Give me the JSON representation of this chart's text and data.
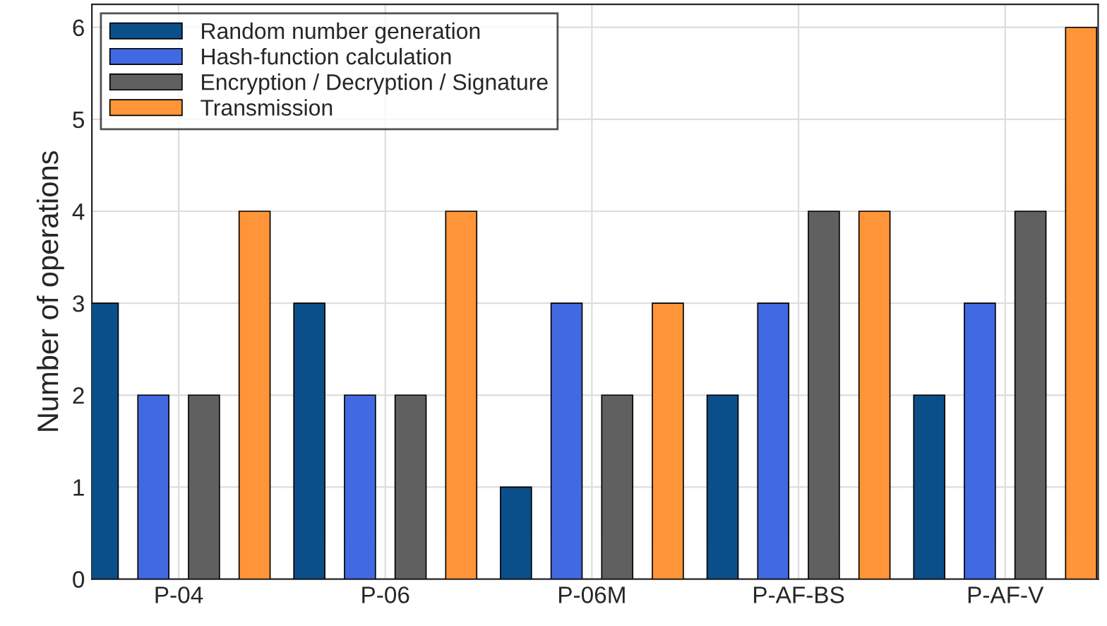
{
  "chart_data": {
    "type": "bar",
    "ylabel": "Number of operations",
    "categories": [
      "P-04",
      "P-06",
      "P-06M",
      "P-AF-BS",
      "P-AF-V"
    ],
    "series": [
      {
        "name": "Random number generation",
        "color": "#0b4f8a",
        "values": [
          3,
          3,
          1,
          2,
          2
        ]
      },
      {
        "name": "Hash-function calculation",
        "color": "#4169e1",
        "values": [
          2,
          2,
          3,
          3,
          3
        ]
      },
      {
        "name": "Encryption / Decryption / Signature",
        "color": "#606060",
        "values": [
          2,
          2,
          2,
          4,
          4
        ]
      },
      {
        "name": "Transmission",
        "color": "#ff9538",
        "values": [
          4,
          4,
          3,
          4,
          6
        ]
      }
    ],
    "ylim": [
      0,
      6.25
    ],
    "yticks": [
      0,
      1,
      2,
      3,
      4,
      5,
      6
    ],
    "grid": true,
    "legend": "top left"
  }
}
